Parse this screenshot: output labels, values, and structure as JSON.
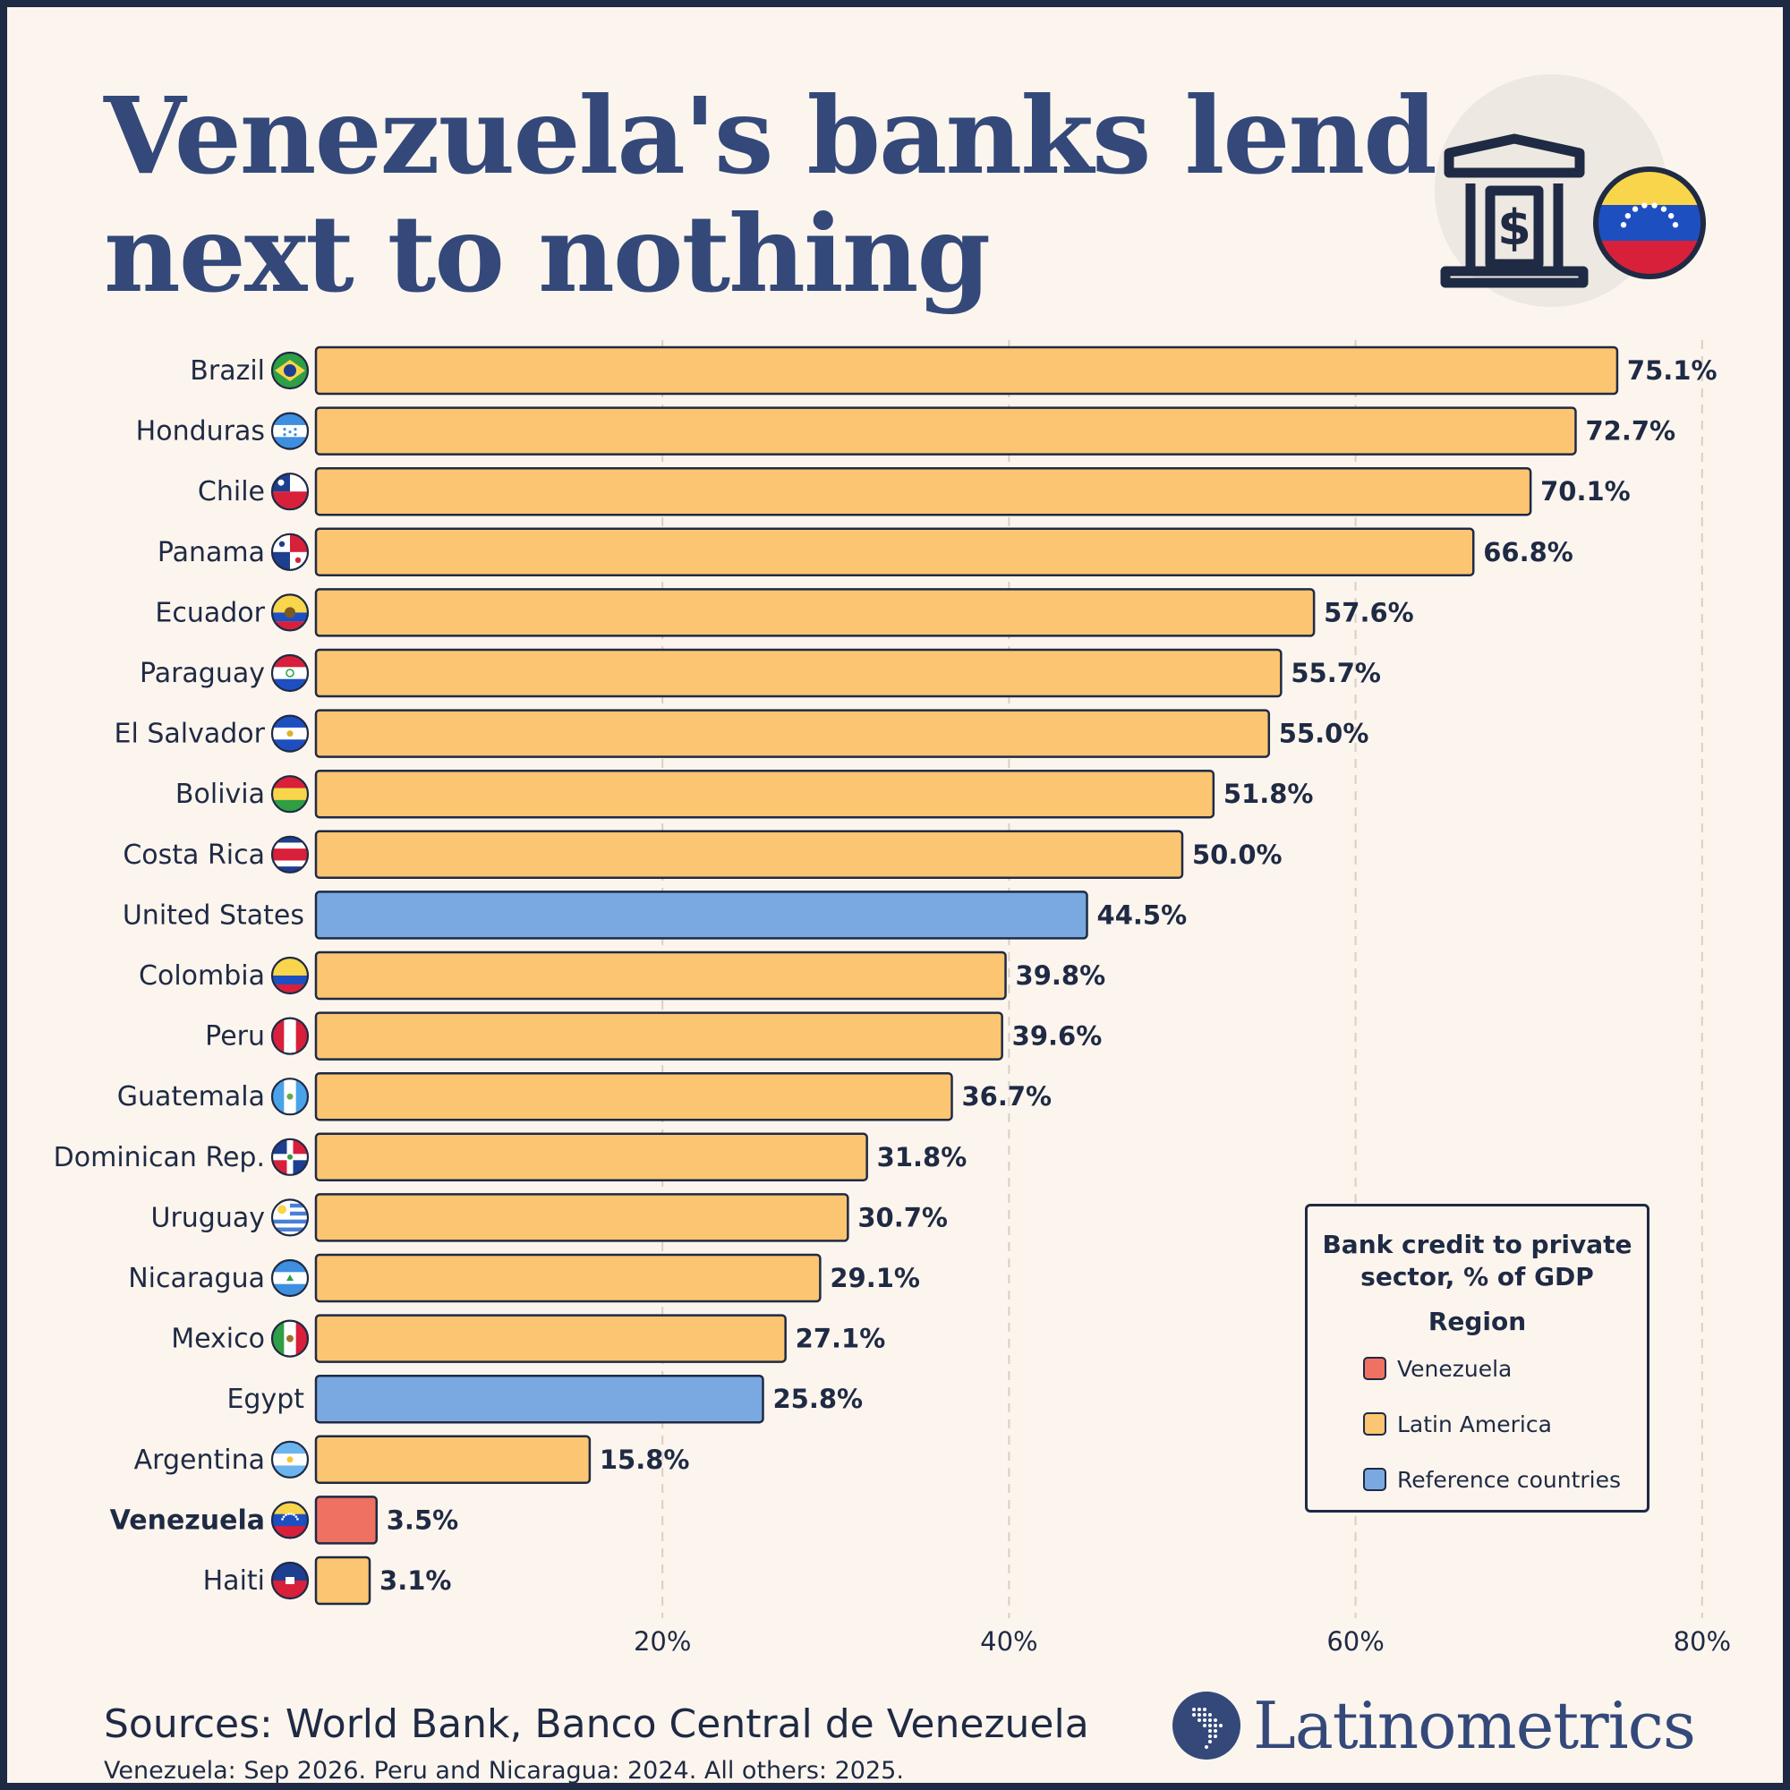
{
  "title_lines": [
    "Venezuela's banks lend",
    "next to nothing"
  ],
  "chart_data": {
    "type": "bar",
    "orientation": "horizontal",
    "categories": [
      "Brazil",
      "Honduras",
      "Chile",
      "Panama",
      "Ecuador",
      "Paraguay",
      "El Salvador",
      "Bolivia",
      "Costa Rica",
      "United States",
      "Colombia",
      "Peru",
      "Guatemala",
      "Dominican Rep.",
      "Uruguay",
      "Nicaragua",
      "Mexico",
      "Egypt",
      "Argentina",
      "Venezuela",
      "Haiti"
    ],
    "values": [
      75.1,
      72.7,
      70.1,
      66.8,
      57.6,
      55.7,
      55.0,
      51.8,
      50.0,
      44.5,
      39.8,
      39.6,
      36.7,
      31.8,
      30.7,
      29.1,
      27.1,
      25.8,
      15.8,
      3.5,
      3.1
    ],
    "value_labels": [
      "75.1%",
      "72.7%",
      "70.1%",
      "66.8%",
      "57.6%",
      "55.7%",
      "55.0%",
      "51.8%",
      "50.0%",
      "44.5%",
      "39.8%",
      "39.6%",
      "36.7%",
      "31.8%",
      "30.7%",
      "29.1%",
      "27.1%",
      "25.8%",
      "15.8%",
      "3.5%",
      "3.1%"
    ],
    "regions": [
      "Latin America",
      "Latin America",
      "Latin America",
      "Latin America",
      "Latin America",
      "Latin America",
      "Latin America",
      "Latin America",
      "Latin America",
      "Reference countries",
      "Latin America",
      "Latin America",
      "Latin America",
      "Latin America",
      "Latin America",
      "Latin America",
      "Latin America",
      "Reference countries",
      "Latin America",
      "Venezuela",
      "Latin America"
    ],
    "flags": [
      "brazil",
      "honduras",
      "chile",
      "panama",
      "ecuador",
      "paraguay",
      "el-salvador",
      "bolivia",
      "costa-rica",
      null,
      "colombia",
      "peru",
      "guatemala",
      "dominican-rep",
      "uruguay",
      "nicaragua",
      "mexico",
      null,
      "argentina",
      "venezuela",
      "haiti"
    ],
    "highlight": "Venezuela",
    "xlim": [
      0,
      80
    ],
    "x_ticks": [
      20,
      40,
      60,
      80
    ],
    "x_tick_labels": [
      "20%",
      "40%",
      "60%",
      "80%"
    ],
    "grid": "vertical dashed",
    "legend": {
      "title": "Bank credit to private sector, % of GDP",
      "subtitle": "Region",
      "placement": "bottom-right",
      "items": [
        {
          "label": "Venezuela",
          "color": "#ef7161"
        },
        {
          "label": "Latin America",
          "color": "#fbc571"
        },
        {
          "label": "Reference countries",
          "color": "#7aa9e2"
        }
      ]
    }
  },
  "colors": {
    "Venezuela": "#ef7161",
    "Latin America": "#fbc571",
    "Reference countries": "#7aa9e2",
    "ink": "#1f2a44",
    "title": "#34497a",
    "background": "#fcf5ee"
  },
  "icons": [
    "bank-icon",
    "venezuela-flag-icon",
    "latinometrics-logo-icon"
  ],
  "footer": {
    "sources": "Sources: World Bank, Banco Central de Venezuela",
    "note": "Venezuela: Sep 2026. Peru and Nicaragua: 2024. All others: 2025.",
    "brand": "Latinometrics"
  }
}
